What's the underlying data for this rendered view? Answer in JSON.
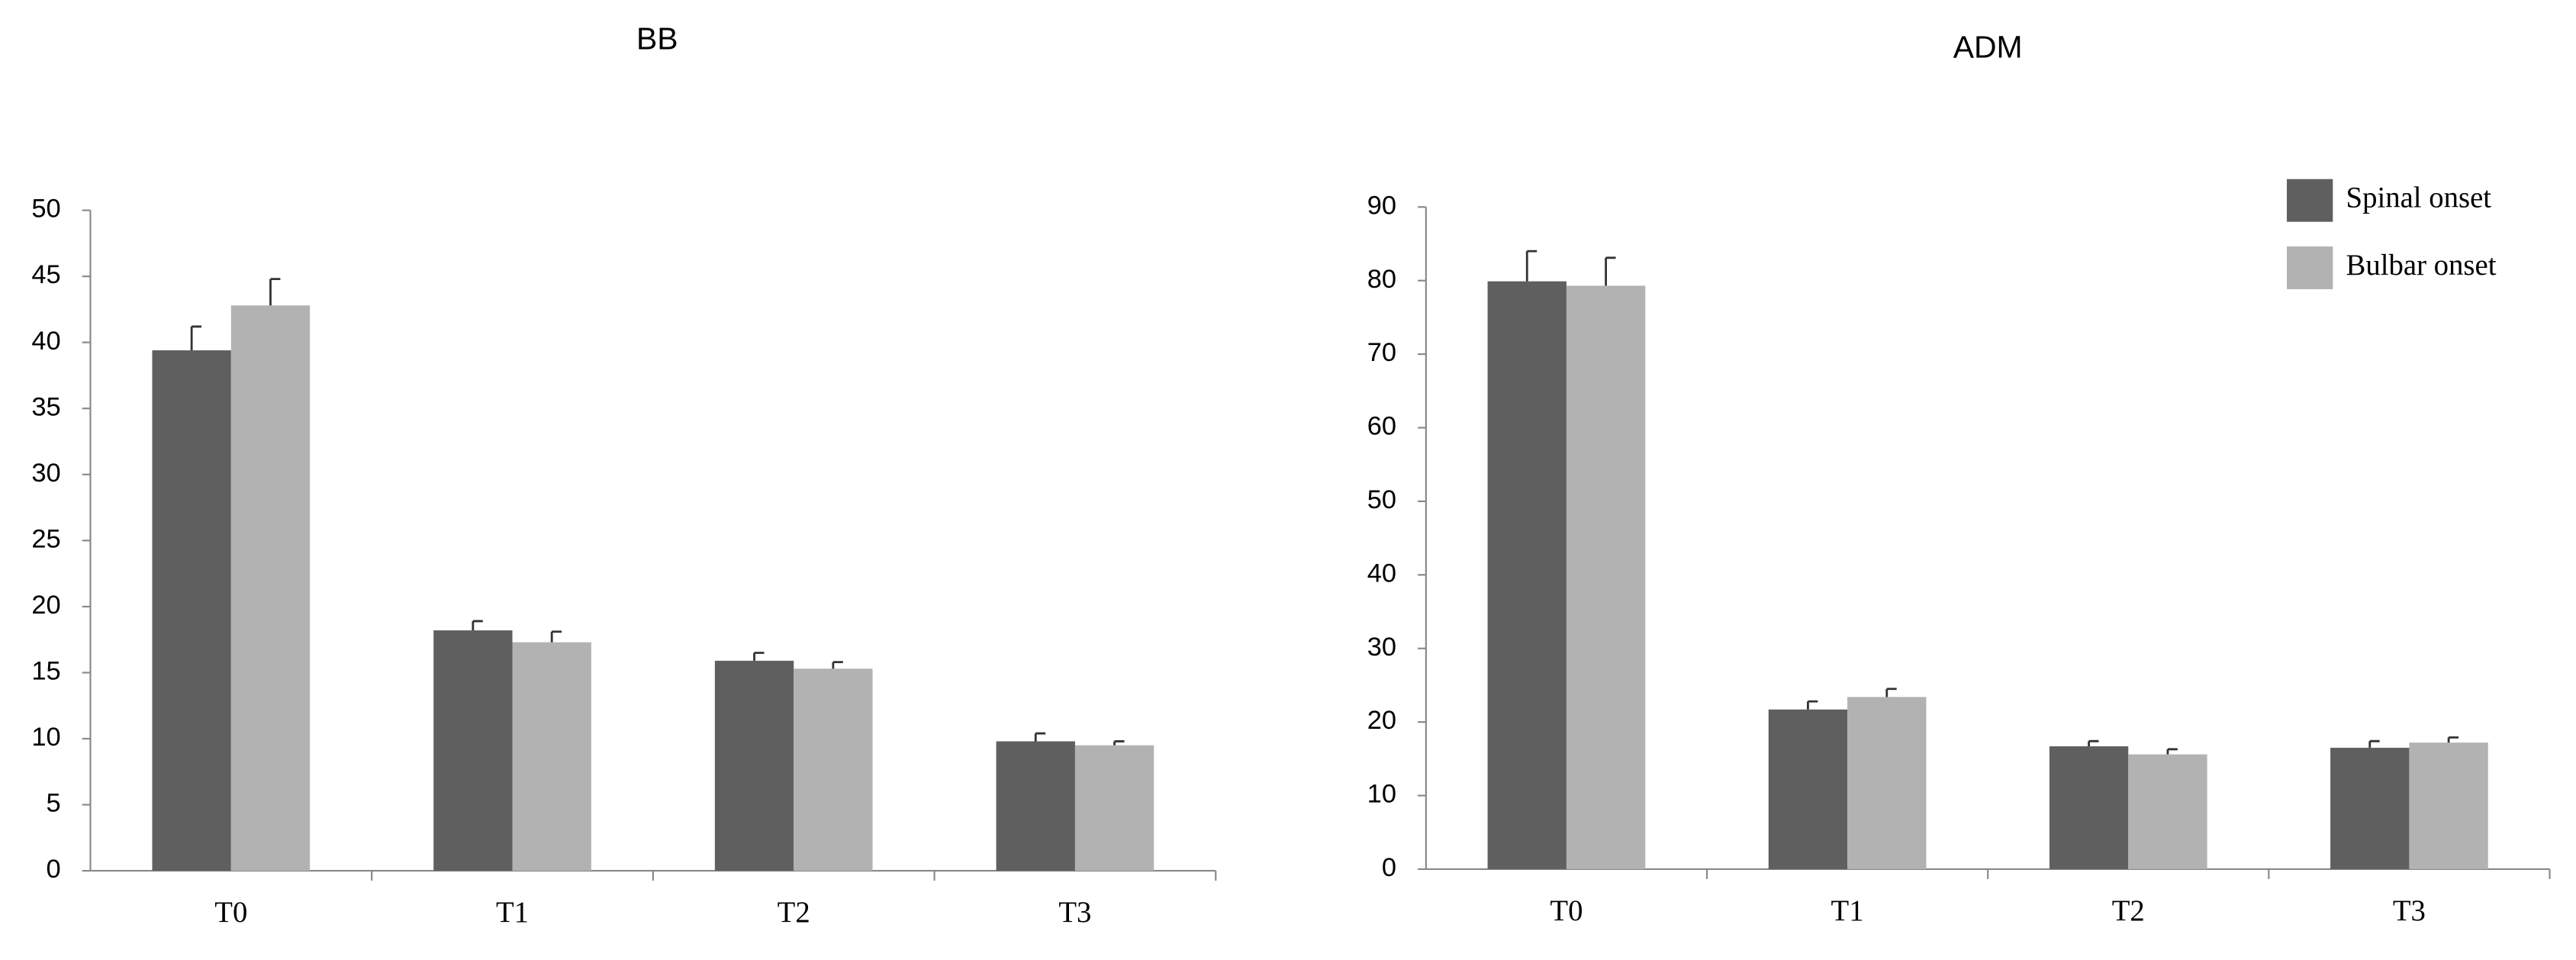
{
  "chart_data": [
    {
      "type": "bar",
      "title": "BB",
      "categories": [
        "T0",
        "T1",
        "T2",
        "T3"
      ],
      "series": [
        {
          "name": "Spinal onset",
          "color": "#5f5f5f",
          "values": [
            39.4,
            18.2,
            15.9,
            9.8
          ],
          "errors": [
            1.8,
            0.7,
            0.6,
            0.6
          ]
        },
        {
          "name": "Bulbar onset",
          "color": "#b2b2b2",
          "values": [
            42.8,
            17.3,
            15.3,
            9.5
          ],
          "errors": [
            2.0,
            0.8,
            0.5,
            0.3
          ]
        }
      ],
      "ylim": [
        0,
        50
      ],
      "yticks": [
        0,
        5,
        10,
        15,
        20,
        25,
        30,
        35,
        40,
        45,
        50
      ],
      "grid": false
    },
    {
      "type": "bar",
      "title": "ADM",
      "categories": [
        "T0",
        "T1",
        "T2",
        "T3"
      ],
      "series": [
        {
          "name": "Spinal onset",
          "color": "#5f5f5f",
          "values": [
            79.9,
            21.7,
            16.7,
            16.5
          ],
          "errors": [
            4.1,
            1.1,
            0.7,
            0.9
          ]
        },
        {
          "name": "Bulbar onset",
          "color": "#b2b2b2",
          "values": [
            79.3,
            23.4,
            15.6,
            17.2
          ],
          "errors": [
            3.8,
            1.1,
            0.7,
            0.7
          ]
        }
      ],
      "ylim": [
        0,
        90
      ],
      "yticks": [
        0,
        10,
        20,
        30,
        40,
        50,
        60,
        70,
        80,
        90
      ],
      "grid": false,
      "legend": "upper right"
    }
  ]
}
